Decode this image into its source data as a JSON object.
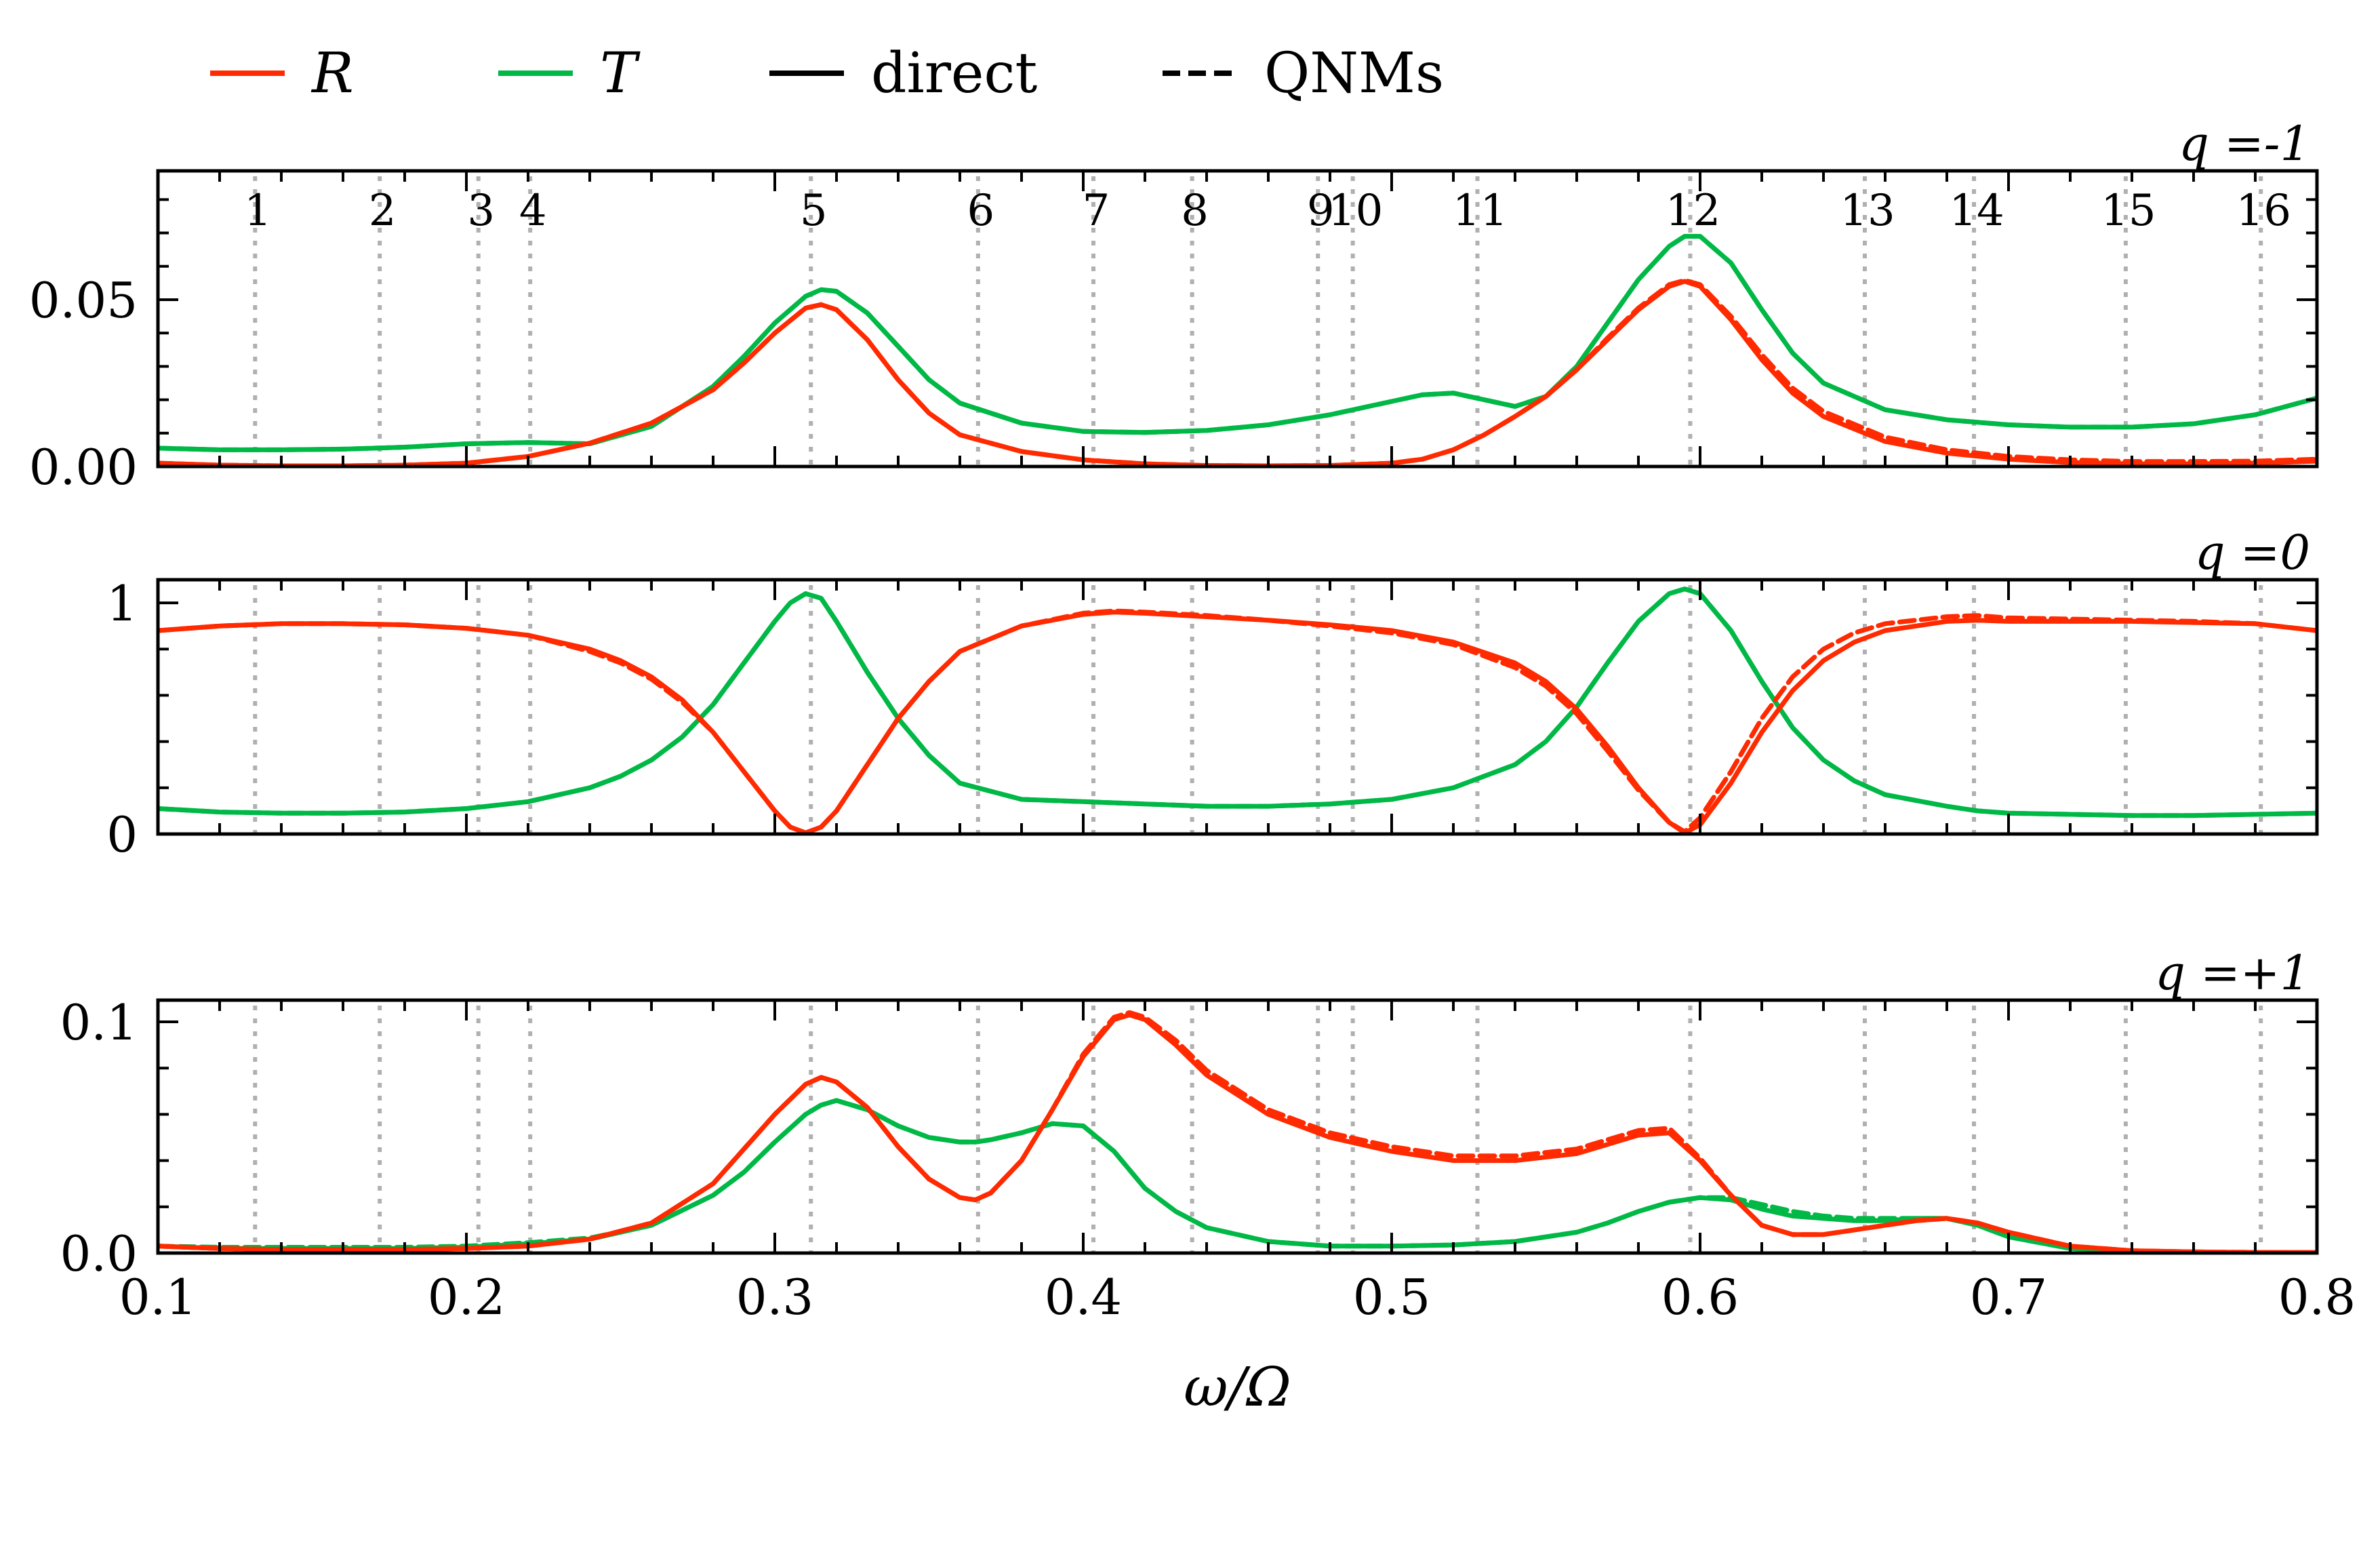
{
  "chart_data": {
    "type": "line",
    "xlabel": "ω/Ω",
    "xlim": [
      0.1,
      0.8
    ],
    "xticks": [
      0.1,
      0.2,
      0.3,
      0.4,
      0.5,
      0.6,
      0.7,
      0.8
    ],
    "xtick_labels": [
      "0.1",
      "0.2",
      "0.3",
      "0.4",
      "0.5",
      "0.6",
      "0.7",
      "0.8"
    ],
    "legend": {
      "placement": "top-left, outside above plots",
      "entries": [
        {
          "label": "R",
          "italic": true,
          "color": "#ff2a00",
          "style": "solid"
        },
        {
          "label": "T",
          "italic": true,
          "color": "#00b846",
          "style": "solid"
        },
        {
          "label": "direct",
          "italic": false,
          "color": "#000000",
          "style": "solid"
        },
        {
          "label": "QNMs",
          "italic": false,
          "color": "#000000",
          "style": "dashed"
        }
      ]
    },
    "colors": {
      "R": "#ff2a00",
      "T": "#00b846",
      "mode_line": "#b0b0b0",
      "axis": "#000000"
    },
    "modes": {
      "labels": [
        "1",
        "2",
        "3",
        "4",
        "5",
        "6",
        "7",
        "8",
        "9",
        "10",
        "11",
        "12",
        "13",
        "14",
        "15",
        "16"
      ],
      "omega": [
        0.1315,
        0.1719,
        0.2039,
        0.2207,
        0.3117,
        0.3659,
        0.4033,
        0.4353,
        0.4761,
        0.4874,
        0.5278,
        0.5968,
        0.6534,
        0.6888,
        0.738,
        0.7818
      ]
    },
    "panels": [
      {
        "label": "q =-1",
        "ylim": [
          0,
          0.0886
        ],
        "yticks": [
          0.0,
          0.05
        ],
        "ytick_labels": [
          "0.00",
          "0.05"
        ],
        "show_mode_numbers": true,
        "x": [
          0.1,
          0.12,
          0.14,
          0.16,
          0.18,
          0.2,
          0.22,
          0.24,
          0.26,
          0.28,
          0.29,
          0.3,
          0.31,
          0.315,
          0.32,
          0.33,
          0.34,
          0.35,
          0.36,
          0.38,
          0.4,
          0.42,
          0.44,
          0.46,
          0.48,
          0.5,
          0.51,
          0.52,
          0.53,
          0.54,
          0.55,
          0.56,
          0.57,
          0.58,
          0.59,
          0.595,
          0.6,
          0.61,
          0.62,
          0.63,
          0.64,
          0.66,
          0.68,
          0.7,
          0.72,
          0.74,
          0.76,
          0.78,
          0.8
        ],
        "series": [
          {
            "name": "R direct",
            "style": "solid",
            "color": "#ff2a00",
            "values": [
              0.001,
              0.0004,
              0.0002,
              0.0002,
              0.0004,
              0.001,
              0.003,
              0.007,
              0.013,
              0.023,
              0.031,
              0.04,
              0.0475,
              0.0485,
              0.047,
              0.038,
              0.026,
              0.016,
              0.0095,
              0.0045,
              0.002,
              0.0008,
              0.0003,
              0.0002,
              0.0003,
              0.001,
              0.0022,
              0.005,
              0.0095,
              0.015,
              0.021,
              0.029,
              0.038,
              0.047,
              0.054,
              0.0555,
              0.054,
              0.044,
              0.032,
              0.022,
              0.015,
              0.0075,
              0.004,
              0.0022,
              0.0012,
              0.0008,
              0.0008,
              0.001,
              0.0016
            ]
          },
          {
            "name": "R QNMs",
            "style": "dashed",
            "color": "#ff2a00",
            "values": [
              0.001,
              0.0004,
              0.0002,
              0.0002,
              0.0004,
              0.001,
              0.003,
              0.007,
              0.013,
              0.023,
              0.031,
              0.04,
              0.0475,
              0.0485,
              0.047,
              0.038,
              0.026,
              0.016,
              0.0095,
              0.0045,
              0.002,
              0.0008,
              0.0003,
              0.0002,
              0.0003,
              0.001,
              0.0022,
              0.005,
              0.0095,
              0.015,
              0.021,
              0.029,
              0.0385,
              0.0475,
              0.0545,
              0.0558,
              0.0545,
              0.045,
              0.0335,
              0.0235,
              0.0165,
              0.0088,
              0.005,
              0.003,
              0.002,
              0.0015,
              0.0015,
              0.0016,
              0.0022
            ]
          },
          {
            "name": "T direct",
            "style": "solid",
            "color": "#00b846",
            "values": [
              0.0055,
              0.005,
              0.005,
              0.0052,
              0.0058,
              0.0068,
              0.0072,
              0.0068,
              0.012,
              0.024,
              0.033,
              0.043,
              0.051,
              0.053,
              0.0525,
              0.046,
              0.036,
              0.026,
              0.019,
              0.013,
              0.0105,
              0.0102,
              0.0108,
              0.0125,
              0.0155,
              0.0195,
              0.0215,
              0.022,
              0.02,
              0.018,
              0.021,
              0.03,
              0.043,
              0.056,
              0.066,
              0.069,
              0.069,
              0.061,
              0.047,
              0.034,
              0.025,
              0.017,
              0.014,
              0.0125,
              0.0118,
              0.0118,
              0.0128,
              0.0155,
              0.0205
            ]
          },
          {
            "name": "T QNMs",
            "style": "dashed",
            "color": "#00b846",
            "values": [
              0.0055,
              0.005,
              0.005,
              0.0052,
              0.0058,
              0.0068,
              0.0072,
              0.0068,
              0.012,
              0.024,
              0.033,
              0.043,
              0.051,
              0.053,
              0.0525,
              0.046,
              0.036,
              0.026,
              0.019,
              0.013,
              0.0105,
              0.0102,
              0.0108,
              0.0125,
              0.0155,
              0.0195,
              0.0215,
              0.022,
              0.02,
              0.018,
              0.021,
              0.03,
              0.043,
              0.056,
              0.066,
              0.069,
              0.069,
              0.061,
              0.047,
              0.034,
              0.025,
              0.017,
              0.014,
              0.0125,
              0.0118,
              0.0118,
              0.0128,
              0.0155,
              0.0205
            ]
          }
        ]
      },
      {
        "label": "q =0",
        "ylim": [
          0,
          1.1
        ],
        "yticks": [
          0,
          1
        ],
        "ytick_labels": [
          "0",
          "1"
        ],
        "show_mode_numbers": false,
        "x": [
          0.1,
          0.12,
          0.14,
          0.16,
          0.18,
          0.2,
          0.22,
          0.24,
          0.25,
          0.26,
          0.27,
          0.28,
          0.29,
          0.3,
          0.305,
          0.31,
          0.315,
          0.32,
          0.33,
          0.34,
          0.35,
          0.36,
          0.38,
          0.4,
          0.41,
          0.42,
          0.44,
          0.46,
          0.48,
          0.5,
          0.52,
          0.54,
          0.55,
          0.56,
          0.57,
          0.58,
          0.59,
          0.595,
          0.6,
          0.61,
          0.62,
          0.63,
          0.64,
          0.65,
          0.66,
          0.68,
          0.69,
          0.7,
          0.72,
          0.74,
          0.76,
          0.78,
          0.8
        ],
        "series": [
          {
            "name": "R direct",
            "style": "solid",
            "color": "#ff2a00",
            "values": [
              0.88,
              0.9,
              0.91,
              0.91,
              0.905,
              0.89,
              0.86,
              0.8,
              0.75,
              0.68,
              0.58,
              0.44,
              0.27,
              0.1,
              0.03,
              0.005,
              0.03,
              0.1,
              0.3,
              0.5,
              0.66,
              0.79,
              0.9,
              0.95,
              0.96,
              0.955,
              0.94,
              0.925,
              0.905,
              0.88,
              0.83,
              0.74,
              0.66,
              0.54,
              0.38,
              0.2,
              0.05,
              0.005,
              0.04,
              0.22,
              0.44,
              0.62,
              0.75,
              0.83,
              0.88,
              0.92,
              0.925,
              0.92,
              0.92,
              0.92,
              0.915,
              0.91,
              0.88
            ]
          },
          {
            "name": "R QNMs",
            "style": "dashed",
            "color": "#ff2a00",
            "values": [
              0.88,
              0.9,
              0.91,
              0.91,
              0.905,
              0.89,
              0.86,
              0.79,
              0.74,
              0.67,
              0.57,
              0.44,
              0.27,
              0.1,
              0.03,
              0.005,
              0.03,
              0.1,
              0.3,
              0.5,
              0.66,
              0.79,
              0.9,
              0.955,
              0.965,
              0.96,
              0.945,
              0.925,
              0.9,
              0.87,
              0.82,
              0.72,
              0.64,
              0.52,
              0.36,
              0.19,
              0.05,
              0.01,
              0.07,
              0.27,
              0.5,
              0.68,
              0.8,
              0.87,
              0.91,
              0.94,
              0.945,
              0.935,
              0.93,
              0.925,
              0.92,
              0.91,
              0.88
            ]
          },
          {
            "name": "T direct",
            "style": "solid",
            "color": "#00b846",
            "values": [
              0.11,
              0.095,
              0.09,
              0.09,
              0.095,
              0.11,
              0.14,
              0.2,
              0.25,
              0.32,
              0.42,
              0.56,
              0.74,
              0.92,
              1.0,
              1.04,
              1.02,
              0.92,
              0.7,
              0.5,
              0.34,
              0.22,
              0.15,
              0.14,
              0.135,
              0.13,
              0.12,
              0.12,
              0.13,
              0.15,
              0.2,
              0.3,
              0.4,
              0.55,
              0.74,
              0.92,
              1.04,
              1.06,
              1.04,
              0.88,
              0.66,
              0.46,
              0.32,
              0.23,
              0.17,
              0.12,
              0.1,
              0.09,
              0.085,
              0.08,
              0.08,
              0.085,
              0.09
            ]
          },
          {
            "name": "T QNMs",
            "style": "dashed",
            "color": "#00b846",
            "values": [
              0.11,
              0.095,
              0.09,
              0.09,
              0.095,
              0.11,
              0.14,
              0.2,
              0.25,
              0.32,
              0.42,
              0.56,
              0.74,
              0.92,
              1.0,
              1.04,
              1.02,
              0.92,
              0.7,
              0.5,
              0.34,
              0.22,
              0.15,
              0.14,
              0.135,
              0.13,
              0.12,
              0.12,
              0.13,
              0.15,
              0.2,
              0.3,
              0.4,
              0.55,
              0.74,
              0.92,
              1.04,
              1.06,
              1.04,
              0.88,
              0.66,
              0.46,
              0.32,
              0.23,
              0.17,
              0.12,
              0.1,
              0.09,
              0.085,
              0.08,
              0.08,
              0.085,
              0.09
            ]
          }
        ]
      },
      {
        "label": "q =+1",
        "ylim": [
          0,
          0.1094
        ],
        "yticks": [
          0.0,
          0.1
        ],
        "ytick_labels": [
          "0.0",
          "0.1"
        ],
        "show_mode_numbers": false,
        "x": [
          0.1,
          0.12,
          0.14,
          0.16,
          0.18,
          0.2,
          0.22,
          0.24,
          0.26,
          0.28,
          0.29,
          0.3,
          0.31,
          0.315,
          0.32,
          0.33,
          0.34,
          0.35,
          0.36,
          0.365,
          0.37,
          0.38,
          0.39,
          0.4,
          0.41,
          0.415,
          0.42,
          0.43,
          0.44,
          0.46,
          0.48,
          0.5,
          0.52,
          0.54,
          0.56,
          0.57,
          0.58,
          0.59,
          0.6,
          0.61,
          0.62,
          0.63,
          0.64,
          0.65,
          0.66,
          0.67,
          0.68,
          0.69,
          0.7,
          0.72,
          0.74,
          0.76,
          0.78,
          0.8
        ],
        "series": [
          {
            "name": "R direct",
            "style": "solid",
            "color": "#ff2a00",
            "values": [
              0.003,
              0.002,
              0.0015,
              0.0015,
              0.0015,
              0.002,
              0.003,
              0.006,
              0.013,
              0.03,
              0.045,
              0.06,
              0.073,
              0.076,
              0.074,
              0.063,
              0.046,
              0.032,
              0.024,
              0.023,
              0.026,
              0.04,
              0.062,
              0.085,
              0.101,
              0.103,
              0.101,
              0.09,
              0.077,
              0.06,
              0.05,
              0.044,
              0.04,
              0.04,
              0.043,
              0.047,
              0.051,
              0.052,
              0.04,
              0.025,
              0.012,
              0.008,
              0.008,
              0.01,
              0.012,
              0.014,
              0.015,
              0.013,
              0.009,
              0.003,
              0.001,
              0.0005,
              0.0003,
              0.0002
            ]
          },
          {
            "name": "R QNMs",
            "style": "dashed",
            "color": "#ff2a00",
            "values": [
              0.003,
              0.002,
              0.0015,
              0.0015,
              0.0015,
              0.002,
              0.003,
              0.006,
              0.013,
              0.03,
              0.045,
              0.06,
              0.073,
              0.076,
              0.074,
              0.063,
              0.046,
              0.032,
              0.024,
              0.023,
              0.026,
              0.04,
              0.062,
              0.086,
              0.102,
              0.104,
              0.102,
              0.092,
              0.079,
              0.062,
              0.052,
              0.046,
              0.042,
              0.042,
              0.045,
              0.049,
              0.053,
              0.054,
              0.041,
              0.025,
              0.012,
              0.008,
              0.008,
              0.01,
              0.012,
              0.014,
              0.015,
              0.013,
              0.009,
              0.003,
              0.001,
              0.0005,
              0.0003,
              0.0002
            ]
          },
          {
            "name": "T direct",
            "style": "solid",
            "color": "#00b846",
            "values": [
              0.003,
              0.002,
              0.002,
              0.002,
              0.002,
              0.0025,
              0.004,
              0.006,
              0.012,
              0.025,
              0.035,
              0.048,
              0.06,
              0.064,
              0.066,
              0.062,
              0.055,
              0.05,
              0.048,
              0.048,
              0.049,
              0.052,
              0.056,
              0.055,
              0.044,
              0.036,
              0.028,
              0.018,
              0.011,
              0.005,
              0.003,
              0.003,
              0.0035,
              0.005,
              0.009,
              0.013,
              0.018,
              0.022,
              0.024,
              0.023,
              0.019,
              0.016,
              0.015,
              0.014,
              0.014,
              0.015,
              0.015,
              0.012,
              0.007,
              0.002,
              0.0008,
              0.0004,
              0.0002,
              0.0002
            ]
          },
          {
            "name": "T QNMs",
            "style": "dashed",
            "color": "#00b846",
            "values": [
              0.003,
              0.0025,
              0.0025,
              0.0025,
              0.0025,
              0.003,
              0.0045,
              0.0065,
              0.012,
              0.025,
              0.035,
              0.048,
              0.06,
              0.064,
              0.066,
              0.062,
              0.055,
              0.05,
              0.048,
              0.048,
              0.049,
              0.052,
              0.056,
              0.055,
              0.044,
              0.036,
              0.028,
              0.018,
              0.011,
              0.005,
              0.003,
              0.003,
              0.0035,
              0.005,
              0.009,
              0.013,
              0.018,
              0.022,
              0.024,
              0.024,
              0.021,
              0.018,
              0.016,
              0.015,
              0.015,
              0.015,
              0.015,
              0.012,
              0.007,
              0.002,
              0.0008,
              0.0004,
              0.0002,
              0.0002
            ]
          }
        ]
      }
    ]
  }
}
